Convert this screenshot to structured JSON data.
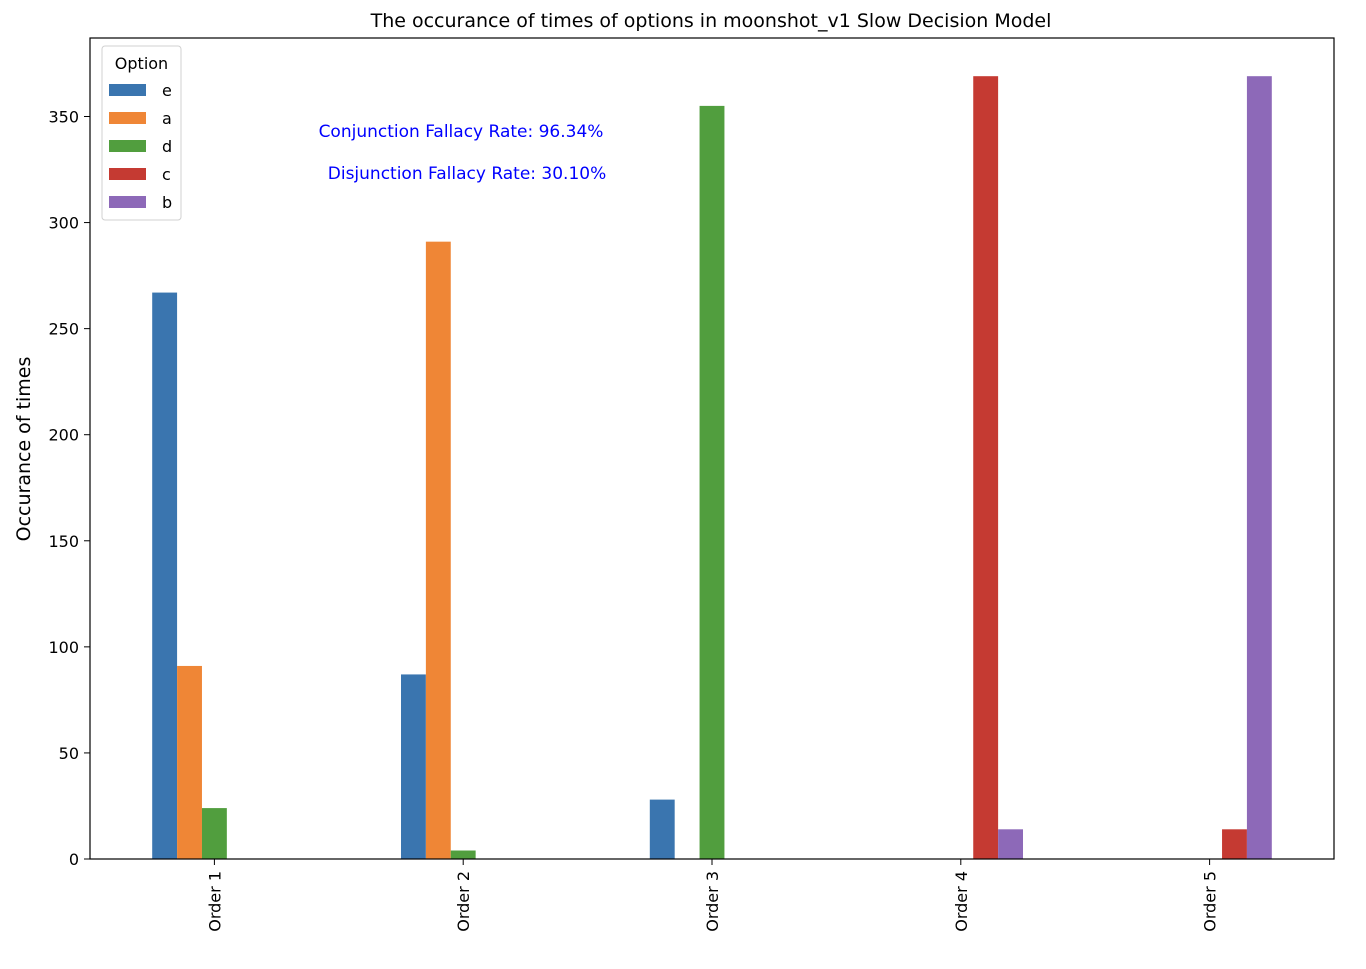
{
  "chart_data": {
    "type": "bar",
    "title": "The occurance of times of options in moonshot_v1 Slow Decision Model",
    "xlabel": "",
    "ylabel": "Occurance of times",
    "ylim": [
      0,
      387
    ],
    "yticks": [
      0,
      50,
      100,
      150,
      200,
      250,
      300,
      350
    ],
    "grid": false,
    "categories": [
      "Order 1",
      "Order 2",
      "Order 3",
      "Order 4",
      "Order 5"
    ],
    "series": [
      {
        "name": "e",
        "color": "#3a75af",
        "values": [
          267,
          87,
          28,
          0,
          0
        ]
      },
      {
        "name": "a",
        "color": "#ef8636",
        "values": [
          91,
          291,
          0,
          0,
          0
        ]
      },
      {
        "name": "d",
        "color": "#519e3e",
        "values": [
          24,
          4,
          355,
          0,
          0
        ]
      },
      {
        "name": "c",
        "color": "#c53a32",
        "values": [
          0,
          0,
          0,
          369,
          14
        ]
      },
      {
        "name": "b",
        "color": "#8d69b8",
        "values": [
          0,
          0,
          0,
          14,
          369
        ]
      }
    ],
    "legend": {
      "title": "Option",
      "placement": "top-left"
    },
    "annotations": [
      {
        "text": "Conjunction Fallacy Rate: 96.34%",
        "color": "#0000ff"
      },
      {
        "text": "Disjunction Fallacy Rate: 30.10%",
        "color": "#0000ff"
      }
    ]
  }
}
